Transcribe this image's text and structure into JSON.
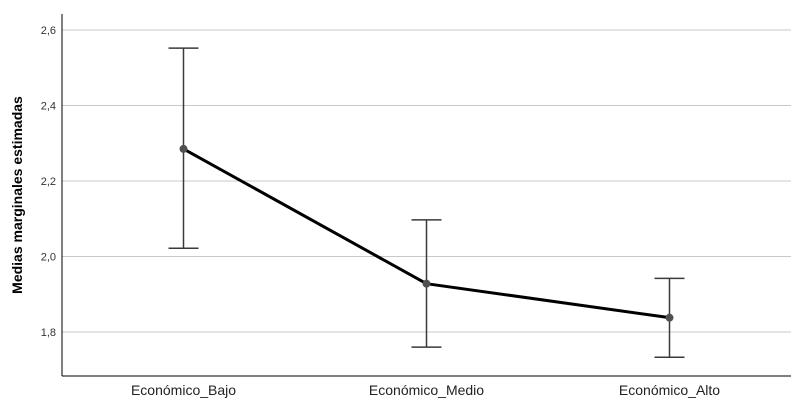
{
  "chart_data": {
    "type": "line",
    "title": "",
    "xlabel": "",
    "ylabel": "Medias marginales estimadas",
    "categories": [
      "Económico_Bajo",
      "Económico_Medio",
      "Económico_Alto"
    ],
    "values": [
      2.285,
      1.928,
      1.838
    ],
    "error_low": [
      2.022,
      1.76,
      1.733
    ],
    "error_high": [
      2.552,
      2.097,
      1.942
    ],
    "ylim": [
      1.7,
      2.65
    ],
    "yticks": [
      1.8,
      2.0,
      2.2,
      2.4,
      2.6
    ],
    "ytick_labels": [
      "1,8",
      "2,0",
      "2,2",
      "2,4",
      "2,6"
    ],
    "grid": true,
    "colors": {
      "line": "#000000",
      "marker": "#505050",
      "error_bar": "#3a3a3a",
      "grid": "#c8c8c8",
      "axis": "#000000"
    }
  }
}
